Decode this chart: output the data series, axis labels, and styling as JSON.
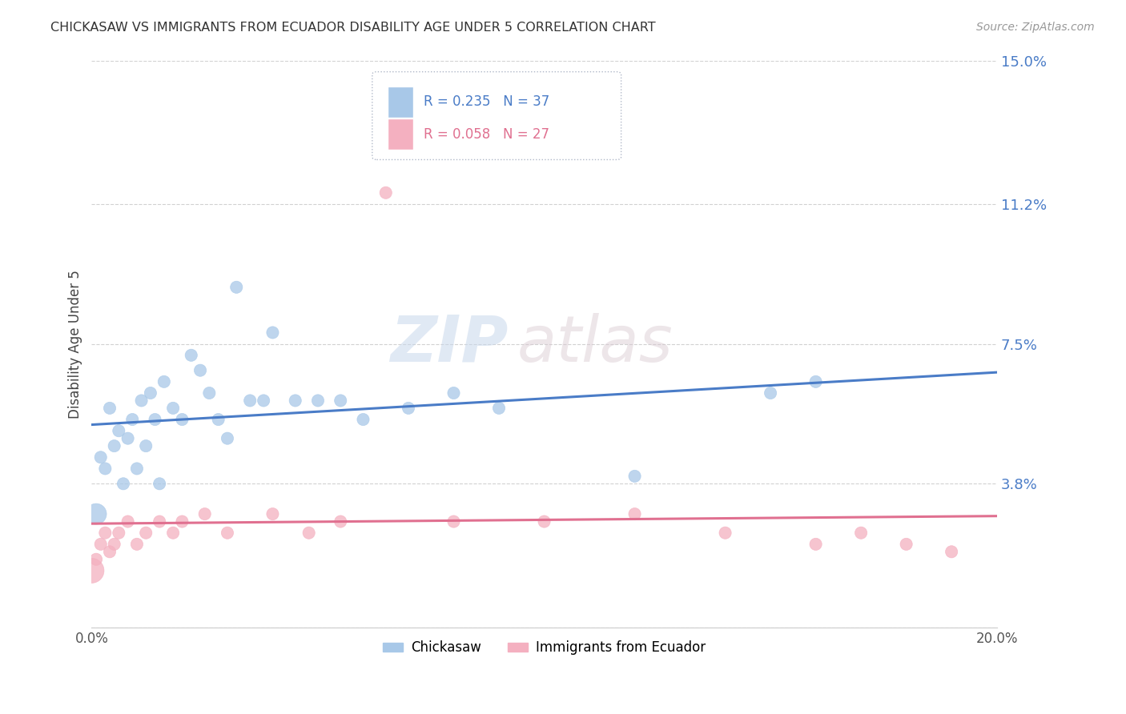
{
  "title": "CHICKASAW VS IMMIGRANTS FROM ECUADOR DISABILITY AGE UNDER 5 CORRELATION CHART",
  "source": "Source: ZipAtlas.com",
  "ylabel": "Disability Age Under 5",
  "legend_label1": "Chickasaw",
  "legend_label2": "Immigrants from Ecuador",
  "r1": 0.235,
  "n1": 37,
  "r2": 0.058,
  "n2": 27,
  "xlim": [
    0.0,
    0.2
  ],
  "ylim": [
    0.0,
    0.15
  ],
  "ytick_positions": [
    0.0,
    0.038,
    0.075,
    0.112,
    0.15
  ],
  "ytick_labels": [
    "",
    "3.8%",
    "7.5%",
    "11.2%",
    "15.0%"
  ],
  "color1": "#a8c8e8",
  "color2": "#f4b0c0",
  "line_color1": "#4a7cc7",
  "line_color2": "#e07090",
  "watermark_zip": "ZIP",
  "watermark_atlas": "atlas",
  "chickasaw_x": [
    0.001,
    0.002,
    0.003,
    0.004,
    0.005,
    0.006,
    0.007,
    0.008,
    0.009,
    0.01,
    0.011,
    0.012,
    0.013,
    0.014,
    0.015,
    0.016,
    0.018,
    0.02,
    0.022,
    0.024,
    0.026,
    0.028,
    0.03,
    0.032,
    0.035,
    0.038,
    0.04,
    0.045,
    0.05,
    0.055,
    0.06,
    0.07,
    0.08,
    0.09,
    0.12,
    0.15,
    0.16
  ],
  "chickasaw_y": [
    0.03,
    0.045,
    0.042,
    0.058,
    0.048,
    0.052,
    0.038,
    0.05,
    0.055,
    0.042,
    0.06,
    0.048,
    0.062,
    0.055,
    0.038,
    0.065,
    0.058,
    0.055,
    0.072,
    0.068,
    0.062,
    0.055,
    0.05,
    0.09,
    0.06,
    0.06,
    0.078,
    0.06,
    0.06,
    0.06,
    0.055,
    0.058,
    0.062,
    0.058,
    0.04,
    0.062,
    0.065
  ],
  "ecuador_x": [
    0.0,
    0.001,
    0.002,
    0.003,
    0.004,
    0.005,
    0.006,
    0.008,
    0.01,
    0.012,
    0.015,
    0.018,
    0.02,
    0.025,
    0.03,
    0.04,
    0.048,
    0.055,
    0.065,
    0.08,
    0.1,
    0.12,
    0.14,
    0.16,
    0.17,
    0.18,
    0.19
  ],
  "ecuador_y": [
    0.015,
    0.018,
    0.022,
    0.025,
    0.02,
    0.022,
    0.025,
    0.028,
    0.022,
    0.025,
    0.028,
    0.025,
    0.028,
    0.03,
    0.025,
    0.03,
    0.025,
    0.028,
    0.115,
    0.028,
    0.028,
    0.03,
    0.025,
    0.022,
    0.025,
    0.022,
    0.02
  ],
  "chickasaw_sizes": [
    350,
    120,
    120,
    120,
    120,
    120,
    120,
    120,
    120,
    120,
    120,
    120,
    120,
    120,
    120,
    120,
    120,
    120,
    120,
    120,
    120,
    120,
    120,
    120,
    120,
    120,
    120,
    120,
    120,
    120,
    120,
    120,
    120,
    120,
    120,
    120,
    120
  ],
  "ecuador_sizes": [
    500,
    120,
    120,
    120,
    120,
    120,
    120,
    120,
    120,
    120,
    120,
    120,
    120,
    120,
    120,
    120,
    120,
    120,
    120,
    120,
    120,
    120,
    120,
    120,
    120,
    120,
    120
  ]
}
